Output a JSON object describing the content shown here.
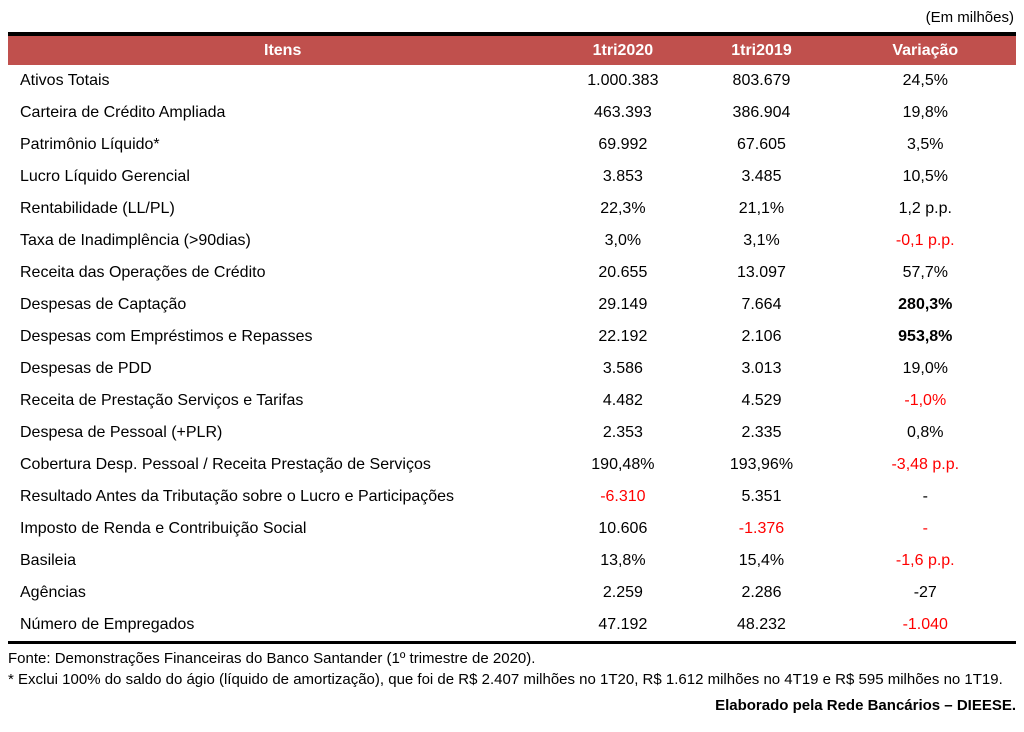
{
  "page": {
    "unit_note": "(Em milhões)"
  },
  "colors": {
    "header_bg": "#C0504D",
    "header_text": "#FFFFFF",
    "negative_text": "#FF0000",
    "border": "#000000"
  },
  "table": {
    "headers": [
      "Itens",
      "1tri2020",
      "1tri2019",
      "Variação"
    ],
    "rows": [
      {
        "item": "Ativos Totais",
        "v2020": "1.000.383",
        "v2019": "803.679",
        "var": "24,5%"
      },
      {
        "item": "Carteira de Crédito Ampliada",
        "v2020": "463.393",
        "v2019": "386.904",
        "var": "19,8%"
      },
      {
        "item": "Patrimônio Líquido*",
        "v2020": "69.992",
        "v2019": "67.605",
        "var": "3,5%"
      },
      {
        "item": "Lucro Líquido Gerencial",
        "v2020": "3.853",
        "v2019": "3.485",
        "var": "10,5%"
      },
      {
        "item": "Rentabilidade (LL/PL)",
        "v2020": "22,3%",
        "v2019": "21,1%",
        "var": "1,2 p.p."
      },
      {
        "item": "Taxa de Inadimplência (>90dias)",
        "v2020": "3,0%",
        "v2019": "3,1%",
        "var": "-0,1 p.p.",
        "var_red": true
      },
      {
        "item": "Receita das Operações de Crédito",
        "v2020": "20.655",
        "v2019": "13.097",
        "var": "57,7%"
      },
      {
        "item": "Despesas de Captação",
        "v2020": "29.149",
        "v2019": "7.664",
        "var": "280,3%",
        "var_bold": true
      },
      {
        "item": "Despesas com Empréstimos e Repasses",
        "v2020": "22.192",
        "v2019": "2.106",
        "var": "953,8%",
        "var_bold": true
      },
      {
        "item": "Despesas de PDD",
        "v2020": "3.586",
        "v2019": "3.013",
        "var": "19,0%"
      },
      {
        "item": "Receita de Prestação Serviços e Tarifas",
        "v2020": "4.482",
        "v2019": "4.529",
        "var": "-1,0%",
        "var_red": true
      },
      {
        "item": "Despesa de Pessoal (+PLR)",
        "v2020": "2.353",
        "v2019": "2.335",
        "var": "0,8%"
      },
      {
        "item": "Cobertura Desp. Pessoal / Receita Prestação de Serviços",
        "v2020": "190,48%",
        "v2019": "193,96%",
        "var": "-3,48 p.p.",
        "var_red": true
      },
      {
        "item": "Resultado Antes da Tributação sobre o Lucro e Participações",
        "v2020": "-6.310",
        "v2020_red": true,
        "v2019": "5.351",
        "var": "-"
      },
      {
        "item": "Imposto de Renda e Contribuição Social",
        "v2020": "10.606",
        "v2019": "-1.376",
        "v2019_red": true,
        "var": "-",
        "var_red": true
      },
      {
        "item": "Basileia",
        "v2020": "13,8%",
        "v2019": "15,4%",
        "var": "-1,6 p.p.",
        "var_red": true
      },
      {
        "item": "Agências",
        "v2020": "2.259",
        "v2019": "2.286",
        "var": "-27"
      },
      {
        "item": "Número de Empregados",
        "v2020": "47.192",
        "v2019": "48.232",
        "var": "-1.040",
        "var_red": true
      }
    ]
  },
  "footer": {
    "fonte": "Fonte: Demonstrações Financeiras do Banco Santander (1º trimestre de 2020).",
    "note": "* Exclui 100% do saldo do ágio (líquido de amortização), que foi de R$ 2.407 milhões no 1T20, R$ 1.612 milhões no 4T19 e R$ 595 milhões no 1T19.",
    "credit": "Elaborado pela Rede Bancários – DIEESE."
  }
}
